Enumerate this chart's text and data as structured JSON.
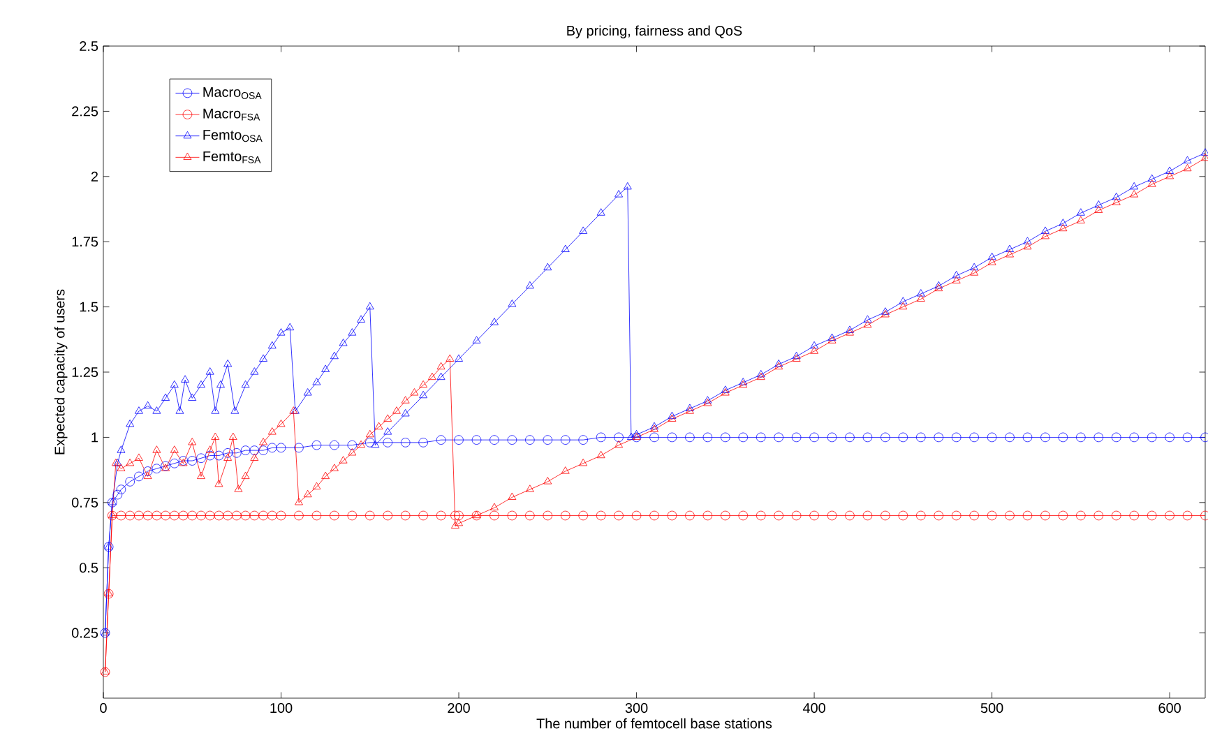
{
  "chart_data": {
    "type": "line",
    "title": "By pricing, fairness and QoS",
    "xlabel": "The number of femtocell base stations",
    "ylabel": "Expected capacity of users",
    "xlim": [
      0,
      620
    ],
    "ylim": [
      0,
      2.5
    ],
    "xticks": [
      0,
      100,
      200,
      300,
      400,
      500,
      600
    ],
    "yticks": [
      0.25,
      0.5,
      0.75,
      1,
      1.25,
      1.5,
      1.75,
      2,
      2.25,
      2.5
    ],
    "legend": "top left",
    "grid": false,
    "line_style": "solid",
    "series": [
      {
        "name": "Macro$_{OSA}$",
        "color": "#0000ff",
        "marker": "circle",
        "x": [
          1,
          3,
          5,
          8,
          10,
          15,
          20,
          25,
          30,
          35,
          40,
          45,
          50,
          55,
          60,
          65,
          70,
          75,
          80,
          85,
          90,
          95,
          100,
          110,
          120,
          130,
          140,
          150,
          160,
          170,
          180,
          190,
          200,
          210,
          220,
          230,
          240,
          250,
          260,
          270,
          280,
          290,
          300,
          310,
          320,
          330,
          340,
          350,
          360,
          370,
          380,
          390,
          400,
          410,
          420,
          430,
          440,
          450,
          460,
          470,
          480,
          490,
          500,
          510,
          520,
          530,
          540,
          550,
          560,
          570,
          580,
          590,
          600,
          610,
          620
        ],
        "values": [
          0.25,
          0.58,
          0.75,
          0.78,
          0.8,
          0.83,
          0.85,
          0.87,
          0.88,
          0.89,
          0.9,
          0.91,
          0.91,
          0.92,
          0.93,
          0.93,
          0.94,
          0.94,
          0.95,
          0.95,
          0.95,
          0.96,
          0.96,
          0.96,
          0.97,
          0.97,
          0.97,
          0.98,
          0.98,
          0.98,
          0.98,
          0.99,
          0.99,
          0.99,
          0.99,
          0.99,
          0.99,
          0.99,
          0.99,
          0.99,
          1,
          1,
          1,
          1,
          1,
          1,
          1,
          1,
          1,
          1,
          1,
          1,
          1,
          1,
          1,
          1,
          1,
          1,
          1,
          1,
          1,
          1,
          1,
          1,
          1,
          1,
          1,
          1,
          1,
          1,
          1,
          1,
          1,
          1,
          1
        ]
      },
      {
        "name": "Macro$_{FSA}$",
        "color": "#ff0000",
        "marker": "circle",
        "x": [
          1,
          3,
          5,
          10,
          15,
          20,
          25,
          30,
          35,
          40,
          45,
          50,
          55,
          60,
          65,
          70,
          75,
          80,
          85,
          90,
          95,
          100,
          110,
          120,
          130,
          140,
          150,
          160,
          170,
          180,
          190,
          198,
          200,
          210,
          220,
          230,
          240,
          250,
          260,
          270,
          280,
          290,
          300,
          310,
          320,
          330,
          340,
          350,
          360,
          370,
          380,
          390,
          400,
          410,
          420,
          430,
          440,
          450,
          460,
          470,
          480,
          490,
          500,
          510,
          520,
          530,
          540,
          550,
          560,
          570,
          580,
          590,
          600,
          610,
          620
        ],
        "values": [
          0.1,
          0.4,
          0.7,
          0.7,
          0.7,
          0.7,
          0.7,
          0.7,
          0.7,
          0.7,
          0.7,
          0.7,
          0.7,
          0.7,
          0.7,
          0.7,
          0.7,
          0.7,
          0.7,
          0.7,
          0.7,
          0.7,
          0.7,
          0.7,
          0.7,
          0.7,
          0.7,
          0.7,
          0.7,
          0.7,
          0.7,
          0.7,
          0.7,
          0.7,
          0.7,
          0.7,
          0.7,
          0.7,
          0.7,
          0.7,
          0.7,
          0.7,
          0.7,
          0.7,
          0.7,
          0.7,
          0.7,
          0.7,
          0.7,
          0.7,
          0.7,
          0.7,
          0.7,
          0.7,
          0.7,
          0.7,
          0.7,
          0.7,
          0.7,
          0.7,
          0.7,
          0.7,
          0.7,
          0.7,
          0.7,
          0.7,
          0.7,
          0.7,
          0.7,
          0.7,
          0.7,
          0.7,
          0.7,
          0.7,
          0.7
        ]
      },
      {
        "name": "Femto$_{OSA}$",
        "color": "#0000ff",
        "marker": "triangle",
        "x": [
          1,
          3,
          5,
          8,
          10,
          15,
          20,
          25,
          30,
          35,
          40,
          43,
          46,
          50,
          55,
          60,
          63,
          66,
          70,
          74,
          80,
          85,
          90,
          95,
          100,
          105,
          108,
          115,
          120,
          125,
          130,
          135,
          140,
          145,
          150,
          153,
          160,
          170,
          180,
          190,
          200,
          210,
          220,
          230,
          240,
          250,
          260,
          270,
          280,
          290,
          295,
          297,
          300,
          310,
          320,
          330,
          340,
          350,
          360,
          370,
          380,
          390,
          400,
          410,
          420,
          430,
          440,
          450,
          460,
          470,
          480,
          490,
          500,
          510,
          520,
          530,
          540,
          550,
          560,
          570,
          580,
          590,
          600,
          610,
          620
        ],
        "values": [
          0.25,
          0.58,
          0.75,
          0.9,
          0.95,
          1.05,
          1.1,
          1.12,
          1.1,
          1.15,
          1.2,
          1.1,
          1.22,
          1.15,
          1.2,
          1.25,
          1.1,
          1.2,
          1.28,
          1.1,
          1.2,
          1.25,
          1.3,
          1.35,
          1.4,
          1.42,
          1.1,
          1.17,
          1.21,
          1.26,
          1.31,
          1.36,
          1.4,
          1.45,
          1.5,
          0.97,
          1.02,
          1.09,
          1.16,
          1.23,
          1.3,
          1.37,
          1.44,
          1.51,
          1.58,
          1.65,
          1.72,
          1.79,
          1.86,
          1.93,
          1.96,
          1.0,
          1.01,
          1.04,
          1.08,
          1.11,
          1.14,
          1.18,
          1.21,
          1.24,
          1.28,
          1.31,
          1.35,
          1.38,
          1.41,
          1.45,
          1.48,
          1.52,
          1.55,
          1.58,
          1.62,
          1.65,
          1.69,
          1.72,
          1.75,
          1.79,
          1.82,
          1.86,
          1.89,
          1.92,
          1.96,
          1.99,
          2.02,
          2.06,
          2.09
        ]
      },
      {
        "name": "Femto$_{FSA}$",
        "color": "#ff0000",
        "marker": "triangle",
        "x": [
          1,
          3,
          5,
          7,
          10,
          15,
          20,
          25,
          30,
          35,
          40,
          45,
          50,
          55,
          60,
          63,
          65,
          70,
          73,
          76,
          80,
          85,
          90,
          95,
          100,
          107,
          110,
          115,
          120,
          125,
          130,
          135,
          140,
          145,
          150,
          155,
          160,
          165,
          170,
          175,
          180,
          185,
          190,
          195,
          198,
          200,
          210,
          220,
          230,
          240,
          250,
          260,
          270,
          280,
          290,
          300,
          310,
          320,
          330,
          340,
          350,
          360,
          370,
          380,
          390,
          400,
          410,
          420,
          430,
          440,
          450,
          460,
          470,
          480,
          490,
          500,
          510,
          520,
          530,
          540,
          550,
          560,
          570,
          580,
          590,
          600,
          610,
          620
        ],
        "values": [
          0.1,
          0.4,
          0.7,
          0.9,
          0.88,
          0.9,
          0.92,
          0.85,
          0.95,
          0.88,
          0.95,
          0.9,
          0.98,
          0.85,
          0.95,
          1.0,
          0.82,
          0.92,
          1.0,
          0.8,
          0.85,
          0.92,
          0.98,
          1.02,
          1.05,
          1.1,
          0.75,
          0.78,
          0.81,
          0.85,
          0.88,
          0.91,
          0.94,
          0.97,
          1.01,
          1.04,
          1.07,
          1.1,
          1.14,
          1.17,
          1.2,
          1.23,
          1.27,
          1.3,
          0.66,
          0.67,
          0.7,
          0.73,
          0.77,
          0.8,
          0.83,
          0.87,
          0.9,
          0.93,
          0.97,
          1.0,
          1.03,
          1.07,
          1.1,
          1.13,
          1.17,
          1.2,
          1.23,
          1.27,
          1.3,
          1.33,
          1.37,
          1.4,
          1.43,
          1.47,
          1.5,
          1.53,
          1.57,
          1.6,
          1.63,
          1.67,
          1.7,
          1.73,
          1.77,
          1.8,
          1.83,
          1.87,
          1.9,
          1.93,
          1.97,
          2.0,
          2.03,
          2.07
        ]
      }
    ]
  }
}
